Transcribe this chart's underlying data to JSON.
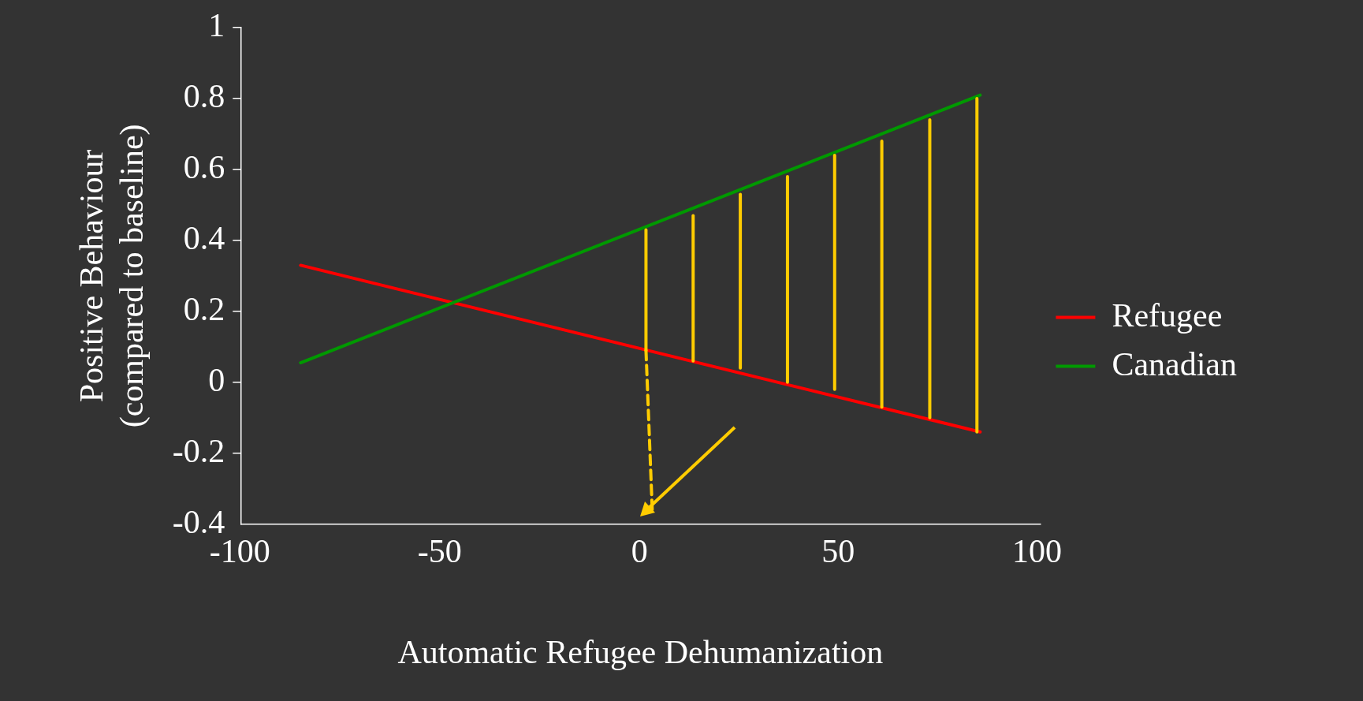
{
  "chart_data": {
    "type": "line",
    "xlabel": "Automatic Refugee Dehumanization",
    "ylabel": "Positive Behaviour\n(compared to baseline)",
    "xlim": [
      -100,
      100
    ],
    "xticks": [
      -100,
      -50,
      0,
      50,
      100
    ],
    "ylim": [
      -0.4,
      1
    ],
    "yticks": [
      -0.4,
      -0.2,
      0,
      0.2,
      0.4,
      0.6,
      0.8,
      1
    ],
    "grid": false,
    "legend": "right",
    "marker": "none",
    "line_style": "solid",
    "series": [
      {
        "name": "Refugee",
        "color": "#ff0000",
        "x": [
          -85,
          85
        ],
        "values": [
          0.33,
          -0.14
        ]
      },
      {
        "name": "Canadian",
        "color": "#009900",
        "x": [
          -85,
          85
        ],
        "values": [
          0.055,
          0.81
        ]
      },
      {
        "color": "#ffcc00",
        "x": [
          1.4,
          1.4
        ],
        "values": [
          0.09,
          0.43
        ]
      },
      {
        "color": "#ffcc00",
        "x": [
          13.2,
          13.2
        ],
        "values": [
          0.06,
          0.47
        ]
      },
      {
        "color": "#ffcc00",
        "x": [
          25,
          25
        ],
        "values": [
          0.04,
          0.53
        ]
      },
      {
        "color": "#ffcc00",
        "x": [
          36.8,
          36.8
        ],
        "values": [
          0,
          0.58
        ]
      },
      {
        "color": "#ffcc00",
        "x": [
          48.6,
          48.6
        ],
        "values": [
          -0.02,
          0.64
        ]
      },
      {
        "color": "#ffcc00",
        "x": [
          60.4,
          60.4
        ],
        "values": [
          -0.07,
          0.68
        ]
      },
      {
        "color": "#ffcc00",
        "x": [
          72.4,
          72.4
        ],
        "values": [
          -0.1,
          0.74
        ]
      },
      {
        "color": "#ffcc00",
        "x": [
          84.2,
          84.2
        ],
        "values": [
          -0.14,
          0.8
        ]
      },
      {
        "color": "#ffcc00",
        "x": [
          1.4,
          3
        ],
        "values": [
          0.09,
          -0.37
        ],
        "line_style": "dashed"
      }
    ]
  }
}
